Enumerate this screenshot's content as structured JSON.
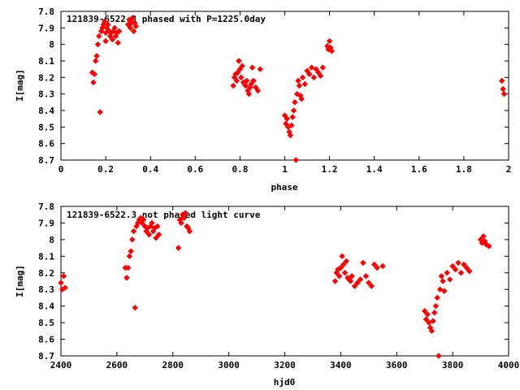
{
  "colors": {
    "points": "#ff0000",
    "axes": "#000000",
    "background": "#ffffff"
  },
  "chart_data": [
    {
      "type": "scatter",
      "title": "121839-6522.3 phased with P=1225.0day",
      "xlabel": "phase",
      "ylabel": "I[mag]",
      "xlim": [
        0,
        2
      ],
      "ylim": [
        7.8,
        8.7
      ],
      "y_inverted": true,
      "grid": false,
      "x_ticks": [
        "0",
        "0.2",
        "0.4",
        "0.6",
        "0.8",
        "1",
        "1.2",
        "1.4",
        "1.6",
        "1.8",
        "2"
      ],
      "y_ticks": [
        "7.8",
        "7.9",
        "8",
        "8.1",
        "8.2",
        "8.3",
        "8.4",
        "8.5",
        "8.6",
        "8.7"
      ],
      "marker": "diamond",
      "series": [
        {
          "x": [
            0.14,
            0.145,
            0.15,
            0.155,
            0.16,
            0.165,
            0.17,
            0.175,
            0.18,
            0.185,
            0.19,
            0.195,
            0.2,
            0.2,
            0.205,
            0.21,
            0.215,
            0.22,
            0.225,
            0.23,
            0.235,
            0.24,
            0.245,
            0.25,
            0.255,
            0.26,
            0.3,
            0.305,
            0.31,
            0.315,
            0.32,
            0.325,
            0.33,
            0.335,
            0.77,
            0.775,
            0.78,
            0.785,
            0.79,
            0.795,
            0.8,
            0.805,
            0.81,
            0.815,
            0.82,
            0.825,
            0.83,
            0.835,
            0.84,
            0.845,
            0.85,
            0.855,
            0.86,
            0.87,
            0.88,
            0.89,
            1.0,
            1.005,
            1.01,
            1.015,
            1.02,
            1.025,
            1.03,
            1.035,
            1.04,
            1.045,
            1.05,
            1.055,
            1.06,
            1.065,
            1.07,
            1.075,
            1.08,
            1.09,
            1.1,
            1.11,
            1.12,
            1.13,
            1.14,
            1.15,
            1.16,
            1.17,
            1.19,
            1.195,
            1.2,
            1.205,
            1.21,
            1.97,
            1.975,
            1.98
          ],
          "y": [
            8.17,
            8.23,
            8.18,
            8.1,
            8.07,
            8.0,
            7.95,
            8.41,
            7.92,
            7.9,
            7.88,
            7.86,
            7.93,
            7.98,
            7.9,
            7.88,
            7.92,
            7.95,
            7.93,
            7.97,
            7.92,
            7.9,
            7.95,
            7.93,
            7.99,
            7.92,
            7.88,
            7.85,
            7.9,
            7.87,
            7.84,
            7.92,
            7.87,
            7.89,
            8.25,
            8.2,
            8.18,
            8.22,
            8.17,
            8.1,
            8.15,
            8.2,
            8.13,
            8.23,
            8.24,
            8.25,
            8.22,
            8.28,
            8.3,
            8.26,
            8.24,
            8.14,
            8.22,
            8.26,
            8.28,
            8.15,
            8.43,
            8.48,
            8.45,
            8.5,
            8.53,
            8.55,
            8.49,
            8.44,
            8.4,
            8.35,
            8.7,
            8.3,
            8.22,
            8.25,
            8.31,
            8.33,
            8.2,
            8.24,
            8.16,
            8.18,
            8.14,
            8.2,
            8.15,
            8.17,
            8.19,
            8.14,
            8.01,
            8.03,
            7.98,
            8.02,
            8.04,
            8.22,
            8.27,
            8.3
          ]
        }
      ]
    },
    {
      "type": "scatter",
      "title": "121839-6522.3 not phased light curve",
      "xlabel": "hjd0",
      "ylabel": "I[mag]",
      "xlim": [
        2400,
        4000
      ],
      "ylim": [
        7.8,
        8.7
      ],
      "y_inverted": true,
      "grid": false,
      "x_ticks": [
        "2400",
        "2600",
        "2800",
        "3000",
        "3200",
        "3400",
        "3600",
        "3800",
        "4000"
      ],
      "y_ticks": [
        "7.8",
        "7.9",
        "8",
        "8.1",
        "8.2",
        "8.3",
        "8.4",
        "8.5",
        "8.6",
        "8.7"
      ],
      "marker": "diamond",
      "series": [
        {
          "x": [
            2400,
            2405,
            2410,
            2415,
            2630,
            2635,
            2640,
            2645,
            2650,
            2655,
            2660,
            2665,
            2670,
            2675,
            2680,
            2685,
            2690,
            2695,
            2700,
            2705,
            2710,
            2715,
            2720,
            2725,
            2730,
            2735,
            2740,
            2745,
            2750,
            2820,
            2825,
            2830,
            2835,
            2840,
            2845,
            2850,
            2855,
            2860,
            3380,
            3385,
            3390,
            3395,
            3400,
            3405,
            3410,
            3415,
            3420,
            3425,
            3430,
            3435,
            3440,
            3450,
            3460,
            3470,
            3480,
            3490,
            3500,
            3510,
            3520,
            3530,
            3550,
            3700,
            3705,
            3710,
            3715,
            3720,
            3725,
            3730,
            3735,
            3740,
            3745,
            3750,
            3755,
            3760,
            3765,
            3770,
            3780,
            3790,
            3800,
            3810,
            3820,
            3830,
            3840,
            3850,
            3860,
            3900,
            3905,
            3910,
            3915,
            3920,
            3930
          ],
          "y": [
            8.26,
            8.3,
            8.22,
            8.29,
            8.17,
            8.23,
            8.17,
            8.1,
            8.07,
            8.0,
            7.95,
            8.41,
            7.92,
            7.9,
            7.88,
            7.87,
            7.9,
            7.88,
            7.92,
            7.95,
            7.93,
            7.97,
            7.92,
            7.9,
            7.95,
            7.93,
            7.99,
            7.92,
            7.97,
            8.05,
            7.88,
            7.9,
            7.85,
            7.87,
            7.84,
            7.92,
            7.93,
            7.95,
            8.25,
            8.2,
            8.18,
            8.22,
            8.17,
            8.1,
            8.15,
            8.2,
            8.13,
            8.23,
            8.24,
            8.25,
            8.22,
            8.28,
            8.26,
            8.24,
            8.14,
            8.22,
            8.26,
            8.28,
            8.15,
            8.17,
            8.16,
            8.43,
            8.48,
            8.45,
            8.5,
            8.53,
            8.55,
            8.49,
            8.44,
            8.4,
            8.35,
            8.7,
            8.3,
            8.22,
            8.25,
            8.31,
            8.2,
            8.24,
            8.16,
            8.18,
            8.14,
            8.2,
            8.15,
            8.17,
            8.19,
            8.0,
            8.02,
            7.98,
            8.01,
            8.03,
            8.04
          ]
        }
      ]
    }
  ]
}
